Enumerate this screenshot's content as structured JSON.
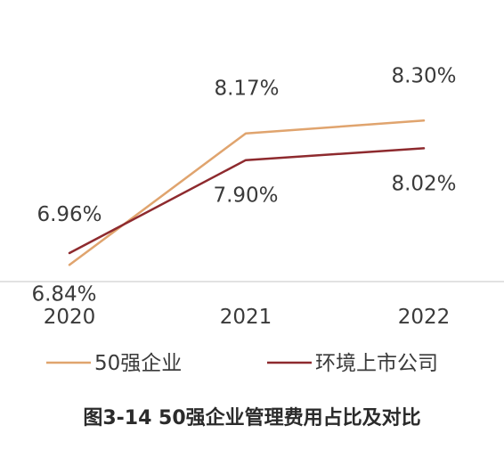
{
  "chart_data": {
    "type": "line",
    "title": "图3-14 50强企业管理费用占比及对比",
    "categories": [
      "2020",
      "2021",
      "2022"
    ],
    "unit": "%",
    "ylim": [
      6.5,
      8.6
    ],
    "grid": false,
    "legend_position": "bottom",
    "series": [
      {
        "name": "50强企业",
        "values": [
          6.84,
          8.17,
          8.3
        ],
        "labels": [
          "6.84%",
          "8.17%",
          "8.30%"
        ],
        "color": "#e0a46e"
      },
      {
        "name": "环境上市公司",
        "values": [
          6.96,
          7.9,
          8.02
        ],
        "labels": [
          "6.96%",
          "7.90%",
          "8.02%"
        ],
        "color": "#8e2a2e"
      }
    ]
  }
}
